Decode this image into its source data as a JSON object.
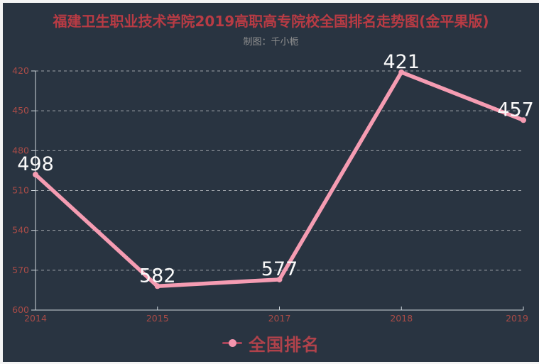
{
  "page": {
    "title": "福建卫生职业技术学院2019高职高专院校全国排名走势图(金平果版)",
    "subtitle": "制图：千小栀"
  },
  "legend": {
    "label": "全国排名"
  },
  "colors": {
    "frame": "#f4f4f4",
    "background": "#293441",
    "title_text": "#b83b44",
    "subtitle_text": "#8f8f8f",
    "axis_label": "#a84b47",
    "axis_line": "#cfd6dc",
    "gridline": "rgba(255,255,255,0.55)",
    "series_line": "#f59cb2",
    "data_label": "#fafafa",
    "legend_text": "#b0424b",
    "legend_dot": "#f495ae",
    "legend_bar": "#a8455a"
  },
  "chart_data": {
    "type": "line",
    "title": "福建卫生职业技术学院2019高职高专院校全国排名走势图(金平果版)",
    "subtitle": "制图：千小栀",
    "categories": [
      "2014",
      "2015",
      "2017",
      "2018",
      "2019"
    ],
    "series": [
      {
        "name": "全国排名",
        "values": [
          498,
          582,
          577,
          421,
          457
        ],
        "color": "#f59cb2"
      }
    ],
    "xlabel": "",
    "ylabel": "",
    "y_ticks": [
      420,
      450,
      480,
      510,
      540,
      570,
      600
    ],
    "ylim": [
      420,
      600
    ],
    "y_axis_inverted": true,
    "grid": "horizontal-dashed",
    "legend_position": "bottom",
    "data_labels_visible": true
  }
}
